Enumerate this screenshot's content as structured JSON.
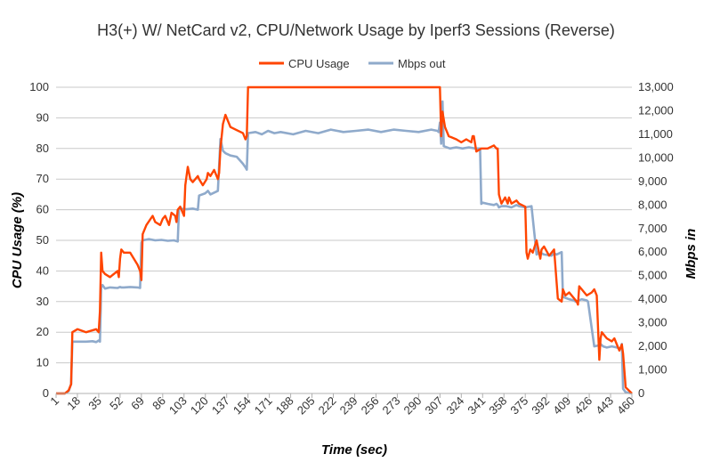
{
  "chart_data": {
    "type": "line",
    "title": "H3(+) W/ NetCard v2, CPU/Network Usage by Iperf3 Sessions (Reverse)",
    "xlabel": "Time (sec)",
    "ylabel_left": "CPU Usage (%)",
    "ylabel_right": "Mbps in",
    "legend_position": "top",
    "grid": "horizontal",
    "xlim": [
      1,
      460
    ],
    "ylim_left": [
      0,
      100
    ],
    "ylim_right": [
      0,
      13000
    ],
    "x_ticks": [
      "1",
      "18",
      "35",
      "52",
      "69",
      "86",
      "103",
      "120",
      "137",
      "154",
      "171",
      "188",
      "205",
      "222",
      "239",
      "256",
      "273",
      "290",
      "307",
      "324",
      "341",
      "358",
      "375",
      "392",
      "409",
      "426",
      "443",
      "460"
    ],
    "y_ticks_left": [
      "0",
      "10",
      "20",
      "30",
      "40",
      "50",
      "60",
      "70",
      "80",
      "90",
      "100"
    ],
    "y_ticks_right": [
      "0",
      "1,000",
      "2,000",
      "3,000",
      "4,000",
      "5,000",
      "6,000",
      "7,000",
      "8,000",
      "9,000",
      "10,000",
      "11,000",
      "12,000",
      "13,000"
    ],
    "series": [
      {
        "name": "CPU Usage",
        "axis": "left",
        "color": "#ff4500",
        "x": [
          1,
          8,
          11,
          13,
          14,
          18,
          25,
          33,
          35,
          36,
          37,
          38,
          40,
          44,
          50,
          51,
          52,
          53,
          55,
          60,
          66,
          68,
          69,
          70,
          73,
          78,
          80,
          84,
          86,
          88,
          90,
          91,
          93,
          96,
          97,
          98,
          100,
          103,
          104,
          106,
          108,
          110,
          114,
          115,
          118,
          121,
          122,
          124,
          127,
          130,
          131,
          132,
          134,
          136,
          140,
          145,
          150,
          152,
          153,
          154,
          160,
          170,
          200,
          250,
          300,
          306,
          307,
          308,
          309,
          311,
          314,
          320,
          324,
          328,
          332,
          333,
          334,
          336,
          340,
          345,
          350,
          352,
          353,
          354,
          356,
          359,
          360,
          361,
          362,
          364,
          368,
          370,
          375,
          376,
          377,
          379,
          381,
          384,
          386,
          387,
          388,
          390,
          394,
          398,
          401,
          404,
          405,
          407,
          410,
          416,
          417,
          418,
          420,
          424,
          428,
          430,
          432,
          434,
          435,
          436,
          440,
          444,
          446,
          448,
          450,
          451,
          452,
          453,
          455,
          460
        ],
        "values": [
          0,
          0,
          1,
          3,
          20,
          21,
          20,
          21,
          20,
          27,
          46,
          40,
          39,
          38,
          40,
          38,
          44,
          47,
          46,
          46,
          42,
          40,
          37,
          52,
          55,
          58,
          56,
          55,
          57,
          58,
          56,
          55,
          59,
          58,
          56,
          60,
          61,
          58,
          68,
          74,
          70,
          69,
          71,
          70,
          68,
          70,
          72,
          71,
          73,
          70,
          72,
          80,
          88,
          91,
          87,
          86,
          85,
          83,
          84,
          100,
          100,
          100,
          100,
          100,
          100,
          100,
          100,
          84,
          92,
          87,
          84,
          83,
          82,
          83,
          82,
          84,
          84,
          79,
          80,
          80,
          81,
          80,
          80,
          65,
          62,
          64,
          63,
          62,
          64,
          62,
          63,
          62,
          61,
          46,
          44,
          47,
          46,
          50,
          46,
          44,
          47,
          48,
          45,
          47,
          31,
          30,
          34,
          32,
          33,
          30,
          29,
          35,
          34,
          32,
          33,
          34,
          32,
          11,
          18,
          20,
          18,
          17,
          18,
          16,
          14,
          15,
          16,
          13,
          2,
          0
        ]
      },
      {
        "name": "Mbps out",
        "axis": "right",
        "color": "#8faacb",
        "x": [
          1,
          8,
          11,
          13,
          14,
          18,
          25,
          30,
          33,
          35,
          36,
          37,
          38,
          40,
          44,
          50,
          51,
          52,
          53,
          55,
          60,
          66,
          68,
          69,
          70,
          75,
          80,
          85,
          90,
          95,
          98,
          99,
          100,
          105,
          110,
          114,
          115,
          120,
          122,
          124,
          130,
          132,
          134,
          136,
          140,
          145,
          150,
          152,
          153,
          154,
          160,
          165,
          170,
          175,
          180,
          190,
          200,
          210,
          220,
          230,
          240,
          250,
          260,
          270,
          280,
          290,
          300,
          305,
          306,
          307,
          308,
          309,
          310,
          315,
          320,
          325,
          330,
          335,
          339,
          340,
          341,
          345,
          350,
          352,
          353,
          354,
          356,
          360,
          364,
          368,
          370,
          375,
          380,
          384,
          385,
          386,
          388,
          390,
          396,
          397,
          398,
          400,
          404,
          405,
          410,
          414,
          415,
          420,
          424,
          425,
          430,
          434,
          435,
          437,
          440,
          444,
          448,
          451,
          452,
          453,
          455,
          460
        ],
        "values": [
          0,
          0,
          100,
          400,
          2200,
          2200,
          2200,
          2220,
          2180,
          2250,
          2200,
          4500,
          4600,
          4450,
          4500,
          4480,
          4500,
          4520,
          4500,
          4500,
          4520,
          4500,
          4480,
          6400,
          6500,
          6550,
          6500,
          6520,
          6480,
          6500,
          6450,
          7800,
          7850,
          7820,
          7850,
          7800,
          8400,
          8500,
          8600,
          8450,
          8600,
          10800,
          10300,
          10200,
          10100,
          10050,
          9750,
          9600,
          9500,
          11050,
          11100,
          11000,
          11150,
          11050,
          11100,
          11000,
          11150,
          11050,
          11200,
          11100,
          11150,
          11200,
          11100,
          11200,
          11150,
          11100,
          11200,
          11150,
          11100,
          11500,
          10600,
          12400,
          10500,
          10400,
          10450,
          10400,
          10450,
          10400,
          10400,
          8050,
          8100,
          8050,
          8000,
          8050,
          8000,
          7900,
          7950,
          7950,
          7900,
          8000,
          7950,
          7900,
          7950,
          5900,
          6000,
          5900,
          5950,
          5900,
          5850,
          5900,
          5950,
          5900,
          6000,
          4100,
          4000,
          3950,
          3900,
          4000,
          3950,
          3900,
          2000,
          2050,
          2100,
          2000,
          1950,
          2000,
          1950,
          1900,
          2100,
          200,
          50,
          0
        ]
      }
    ]
  }
}
